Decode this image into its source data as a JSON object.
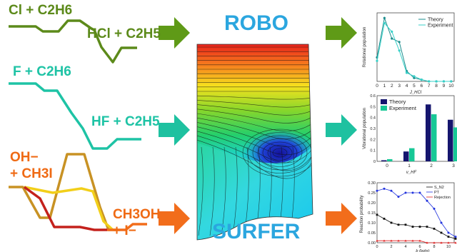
{
  "colors": {
    "cl_path": "#5c8a1a",
    "f_path": "#1ec3a5",
    "oh_label": "#ef6a14",
    "arrow_green": "#5f9a17",
    "arrow_teal": "#1ec1a0",
    "arrow_orange": "#f26d1b",
    "title_blue": "#2ba6df",
    "curve_gold": "#c89224",
    "curve_yellow": "#f2cf1a",
    "curve_red": "#c4211c",
    "curve_orange": "#f26d1b"
  },
  "reactions": {
    "cl": {
      "reactants": "Cl + C2H6",
      "products": "HCl + C2H5"
    },
    "f": {
      "reactants": "F + C2H6",
      "products": "HF + C2H5"
    },
    "oh": {
      "reactant_line1": "OH−",
      "reactant_line2": "+ CH3I",
      "product_line1": "CH3OH",
      "product_line2": "+ I−"
    }
  },
  "title": {
    "line1": "ROBO",
    "line2": "SURFER"
  },
  "chart_data": [
    {
      "type": "line",
      "ylabel": "Rotational population",
      "xlabel": "J_HCl",
      "x": [
        0,
        1,
        2,
        3,
        4,
        5,
        6,
        7,
        8,
        9,
        10
      ],
      "xticks": [
        "0",
        "1",
        "2",
        "3",
        "4",
        "5",
        "6",
        "7",
        "8",
        "9",
        "10"
      ],
      "ylim": [
        0,
        0.4
      ],
      "series": [
        {
          "name": "Theory",
          "values": [
            0.14,
            0.37,
            0.25,
            0.23,
            0.06,
            0.02,
            0.01,
            0.0,
            0.0,
            0.0,
            0.0
          ]
        },
        {
          "name": "Experiment",
          "values": [
            0.12,
            0.34,
            0.29,
            0.18,
            0.05,
            0.03,
            0.01,
            0.0,
            0.0,
            0.0,
            0.0
          ]
        }
      ],
      "legend": "top-right"
    },
    {
      "type": "bar",
      "ylabel": "Vibrational population",
      "xlabel": "v_HF",
      "categories": [
        "0",
        "1",
        "2",
        "3"
      ],
      "yticks": [
        "0",
        "0.1",
        "0.2",
        "0.3",
        "0.4",
        "0.5",
        "0.6"
      ],
      "ylim": [
        0,
        0.6
      ],
      "series": [
        {
          "name": "Theory",
          "values": [
            0.01,
            0.09,
            0.52,
            0.38
          ]
        },
        {
          "name": "Experiment",
          "values": [
            0.02,
            0.12,
            0.43,
            0.31
          ]
        }
      ],
      "legend": "top-left"
    },
    {
      "type": "line",
      "ylabel": "Reaction probability",
      "xlabel": "b (bohr)",
      "x": [
        0,
        1,
        2,
        3,
        4,
        5,
        6,
        7,
        8,
        9,
        10,
        11
      ],
      "xticks": [
        "0",
        "2",
        "4",
        "6",
        "8",
        "10"
      ],
      "yticks": [
        "0.00",
        "0.05",
        "0.10",
        "0.15",
        "0.20",
        "0.25",
        "0.30"
      ],
      "ylim": [
        0,
        0.3
      ],
      "series": [
        {
          "name": "S_N2",
          "values": [
            0.14,
            0.12,
            0.1,
            0.09,
            0.09,
            0.08,
            0.08,
            0.08,
            0.07,
            0.05,
            0.03,
            0.02
          ]
        },
        {
          "name": "PT",
          "values": [
            0.26,
            0.27,
            0.26,
            0.23,
            0.25,
            0.25,
            0.25,
            0.21,
            0.17,
            0.1,
            0.05,
            0.03
          ]
        },
        {
          "name": "Rejection",
          "values": [
            0.01,
            0.01,
            0.01,
            0.01,
            0.01,
            0.01,
            0.01,
            0.0,
            0.0,
            0.0,
            0.0,
            0.0
          ]
        }
      ],
      "legend": "top-right"
    }
  ]
}
